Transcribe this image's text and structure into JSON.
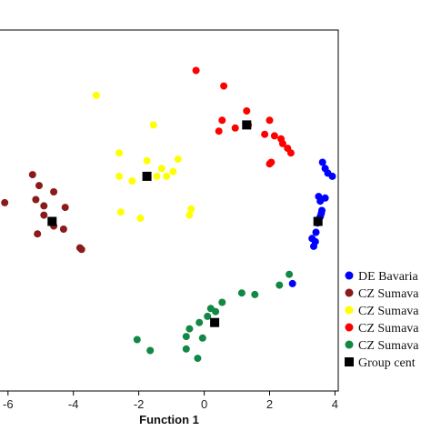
{
  "chart_data": {
    "type": "scatter",
    "xlabel": "Function 1",
    "ylabel": "",
    "xlim": [
      -6.3,
      4.1
    ],
    "ylim": [
      -5.4,
      6.2
    ],
    "x_ticks": [
      -6,
      -4,
      -2,
      0,
      2,
      4
    ],
    "x_tick_labels": [
      "-6",
      "-4",
      "-2",
      "0",
      "2",
      "4"
    ],
    "grid": false,
    "legend_position": "right",
    "series": [
      {
        "name": "DE Bavaria",
        "color": "#0000ff",
        "marker": "circle",
        "points": [
          [
            3.62,
            1.95
          ],
          [
            3.7,
            1.75
          ],
          [
            3.78,
            1.6
          ],
          [
            3.92,
            1.5
          ],
          [
            3.5,
            0.85
          ],
          [
            3.7,
            0.8
          ],
          [
            3.55,
            0.7
          ],
          [
            3.6,
            0.4
          ],
          [
            3.58,
            0.3
          ],
          [
            3.55,
            0.2
          ],
          [
            3.5,
            0.1
          ],
          [
            3.47,
            0.0
          ],
          [
            3.42,
            -0.3
          ],
          [
            3.3,
            -0.5
          ],
          [
            3.4,
            -0.6
          ],
          [
            3.35,
            -0.75
          ],
          [
            2.7,
            -1.95
          ]
        ]
      },
      {
        "name": "CZ Sumava",
        "color": "#8b1a1a",
        "marker": "circle",
        "points": [
          [
            -5.25,
            1.55
          ],
          [
            -5.05,
            1.2
          ],
          [
            -4.6,
            1.0
          ],
          [
            -6.1,
            0.65
          ],
          [
            -5.15,
            0.75
          ],
          [
            -4.9,
            0.55
          ],
          [
            -4.25,
            0.5
          ],
          [
            -4.9,
            0.25
          ],
          [
            -4.6,
            -0.1
          ],
          [
            -5.1,
            -0.35
          ],
          [
            -4.3,
            -0.2
          ],
          [
            -3.8,
            -0.8
          ],
          [
            -3.75,
            -0.85
          ]
        ]
      },
      {
        "name": "CZ Sumava",
        "color": "#ffff00",
        "marker": "circle",
        "points": [
          [
            -3.3,
            4.1
          ],
          [
            -1.55,
            3.15
          ],
          [
            -2.6,
            2.25
          ],
          [
            -1.75,
            2.0
          ],
          [
            -0.8,
            2.05
          ],
          [
            -1.3,
            1.75
          ],
          [
            -0.95,
            1.65
          ],
          [
            -2.6,
            1.5
          ],
          [
            -1.45,
            1.5
          ],
          [
            -1.15,
            1.5
          ],
          [
            -2.2,
            1.35
          ],
          [
            -0.4,
            0.45
          ],
          [
            -2.55,
            0.35
          ],
          [
            -0.45,
            0.25
          ],
          [
            -1.95,
            0.15
          ]
        ]
      },
      {
        "name": "CZ Sumava",
        "color": "#ff0000",
        "marker": "circle",
        "points": [
          [
            -0.25,
            4.9
          ],
          [
            0.6,
            4.4
          ],
          [
            1.3,
            3.6
          ],
          [
            0.55,
            3.3
          ],
          [
            1.35,
            3.15
          ],
          [
            2.0,
            3.3
          ],
          [
            0.95,
            3.05
          ],
          [
            0.45,
            2.95
          ],
          [
            1.85,
            2.85
          ],
          [
            2.15,
            2.8
          ],
          [
            2.35,
            2.7
          ],
          [
            2.4,
            2.55
          ],
          [
            2.55,
            2.4
          ],
          [
            2.65,
            2.25
          ],
          [
            2.05,
            1.95
          ],
          [
            2.0,
            1.9
          ]
        ]
      },
      {
        "name": "CZ Sumava",
        "color": "#118844",
        "marker": "circle",
        "points": [
          [
            2.6,
            -1.65
          ],
          [
            2.3,
            -2.0
          ],
          [
            1.55,
            -2.3
          ],
          [
            1.15,
            -2.25
          ],
          [
            0.55,
            -2.55
          ],
          [
            0.2,
            -2.75
          ],
          [
            0.35,
            -2.85
          ],
          [
            0.1,
            -3.0
          ],
          [
            -0.15,
            -3.2
          ],
          [
            -0.45,
            -3.4
          ],
          [
            -2.05,
            -3.75
          ],
          [
            -0.55,
            -3.65
          ],
          [
            -0.05,
            -3.7
          ],
          [
            -0.55,
            -4.05
          ],
          [
            -1.65,
            -4.1
          ],
          [
            -0.2,
            -4.35
          ]
        ]
      }
    ],
    "group_centroids": {
      "name": "Group cent",
      "color": "#000000",
      "marker": "square",
      "points": [
        [
          3.48,
          0.05
        ],
        [
          -4.65,
          0.05
        ],
        [
          -1.75,
          1.5
        ],
        [
          1.3,
          3.15
        ],
        [
          0.32,
          -3.2
        ]
      ]
    }
  },
  "legend": [
    {
      "label": "DE Bavaria",
      "color": "#0000ff",
      "marker": "circle"
    },
    {
      "label": "CZ Sumava",
      "color": "#8b1a1a",
      "marker": "circle"
    },
    {
      "label": "CZ Sumava",
      "color": "#ffff00",
      "marker": "circle"
    },
    {
      "label": "CZ Sumava",
      "color": "#ff0000",
      "marker": "circle"
    },
    {
      "label": "CZ Sumava",
      "color": "#118844",
      "marker": "circle"
    },
    {
      "label": "Group cent",
      "color": "#000000",
      "marker": "square"
    }
  ]
}
